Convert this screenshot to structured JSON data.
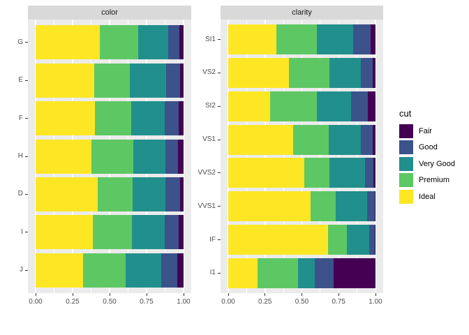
{
  "legend": {
    "title": "cut",
    "entries": [
      "Fair",
      "Good",
      "Very Good",
      "Premium",
      "Ideal"
    ]
  },
  "theme": {
    "background": "#FFFFFF",
    "panel_background": "#EBEBEB",
    "strip_background": "#D9D9D9",
    "grid_color": "#FFFFFF",
    "tick_color": "#333333",
    "axis_text_color": "#4D4D4D",
    "strip_text_color": "#1A1A1A",
    "legend_text_color": "#000000"
  },
  "chart_data": {
    "type": "bar",
    "orientation": "horizontal",
    "stacking": "fill",
    "grid": true,
    "legend_position": "right",
    "legend_title": "cut",
    "xlim": [
      0,
      1
    ],
    "x_tick_labels": [
      "0.00",
      "0.25",
      "0.50",
      "0.75",
      "1.00"
    ],
    "x_tick_values": [
      0,
      0.25,
      0.5,
      0.75,
      1
    ],
    "x_minor_tick_values": [
      0.125,
      0.375,
      0.625,
      0.875
    ],
    "stack_order": [
      "Ideal",
      "Premium",
      "Very Good",
      "Good",
      "Fair"
    ],
    "colors": {
      "Fair": "#440154",
      "Good": "#3B528B",
      "Very Good": "#21908C",
      "Premium": "#5DC863",
      "Ideal": "#FDE725"
    },
    "facets": [
      {
        "label": "color",
        "categories": [
          "G",
          "E",
          "F",
          "H",
          "D",
          "I",
          "J"
        ],
        "series": [
          {
            "name": "Ideal",
            "values": [
              0.4325,
              0.3984,
              0.401,
              0.3751,
              0.4183,
              0.386,
              0.3191
            ]
          },
          {
            "name": "Premium",
            "values": [
              0.2589,
              0.2385,
              0.2443,
              0.2842,
              0.2366,
              0.2634,
              0.2877
            ]
          },
          {
            "name": "Very Good",
            "values": [
              0.2036,
              0.245,
              0.2268,
              0.2197,
              0.2233,
              0.2221,
              0.2414
            ]
          },
          {
            "name": "Good",
            "values": [
              0.0771,
              0.0952,
              0.0953,
              0.0845,
              0.0977,
              0.0963,
              0.1093
            ]
          },
          {
            "name": "Fair",
            "values": [
              0.0278,
              0.0229,
              0.0327,
              0.0365,
              0.0241,
              0.0323,
              0.0424
            ]
          }
        ]
      },
      {
        "label": "clarity",
        "categories": [
          "SI1",
          "VS2",
          "SI2",
          "VS1",
          "VVS2",
          "VVS1",
          "IF",
          "I1"
        ],
        "series": [
          {
            "name": "Ideal",
            "values": [
              0.3277,
              0.4137,
              0.2826,
              0.4392,
              0.5144,
              0.5601,
              0.6771,
              0.197
            ]
          },
          {
            "name": "Premium",
            "values": [
              0.2736,
              0.2739,
              0.3208,
              0.2434,
              0.1717,
              0.1685,
              0.1285,
              0.2767
            ]
          },
          {
            "name": "Very Good",
            "values": [
              0.248,
              0.2114,
              0.2284,
              0.2172,
              0.2438,
              0.2159,
              0.1497,
              0.1134
            ]
          },
          {
            "name": "Good",
            "values": [
              0.1194,
              0.0798,
              0.1176,
              0.0793,
              0.0565,
              0.0509,
              0.0397,
              0.1296
            ]
          },
          {
            "name": "Fair",
            "values": [
              0.0312,
              0.0213,
              0.0507,
              0.0208,
              0.0136,
              0.0047,
              0.005,
              0.2834
            ]
          }
        ]
      }
    ]
  }
}
